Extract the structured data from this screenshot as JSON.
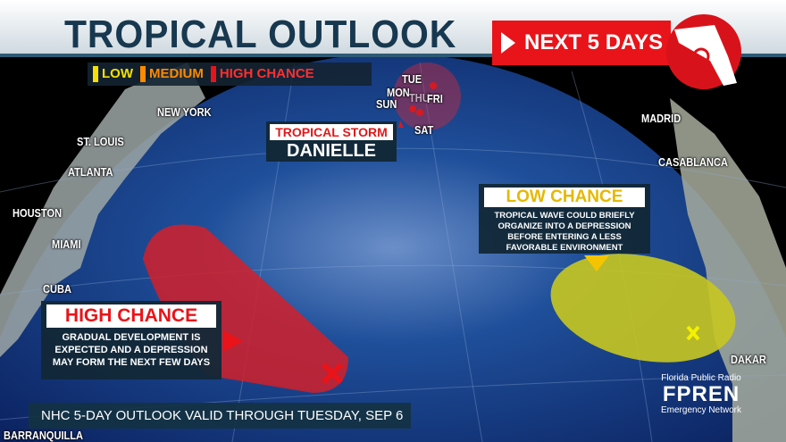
{
  "header": {
    "title": "TROPICAL OUTLOOK",
    "next_days": "NEXT 5 DAYS"
  },
  "legend": [
    {
      "label": "LOW",
      "color": "#f5e000"
    },
    {
      "label": "MEDIUM",
      "color": "#ff8a00"
    },
    {
      "label": "HIGH CHANCE",
      "color": "#e8141a"
    }
  ],
  "cities": {
    "new_york": "NEW YORK",
    "st_louis": "ST. LOUIS",
    "atlanta": "ATLANTA",
    "houston": "HOUSTON",
    "miami": "MIAMI",
    "cuba": "CUBA",
    "barranquilla": "BARRANQUILLA",
    "madrid": "MADRID",
    "casablanca": "CASABLANCA",
    "dakar": "DAKAR"
  },
  "storm": {
    "type": "TROPICAL STORM",
    "name": "DANIELLE",
    "track_days": {
      "tue": "TUE",
      "mon": "MON",
      "thu": "THU",
      "fri": "FRI",
      "sun": "SUN",
      "sat": "SAT"
    }
  },
  "high_area": {
    "title": "HIGH CHANCE",
    "text": "GRADUAL DEVELOPMENT IS EXPECTED AND A DEPRESSION MAY FORM THE NEXT FEW DAYS",
    "color": "#e8141a"
  },
  "low_area": {
    "title": "LOW CHANCE",
    "text": "TROPICAL WAVE COULD BRIEFLY ORGANIZE INTO A DEPRESSION BEFORE ENTERING A LESS FAVORABLE ENVIRONMENT",
    "color": "#f5c400"
  },
  "footer": "NHC 5-DAY OUTLOOK VALID THROUGH TUESDAY, SEP 6",
  "branding": {
    "line1": "Florida Public Radio",
    "logo": "FPREN",
    "line2": "Emergency Network"
  }
}
